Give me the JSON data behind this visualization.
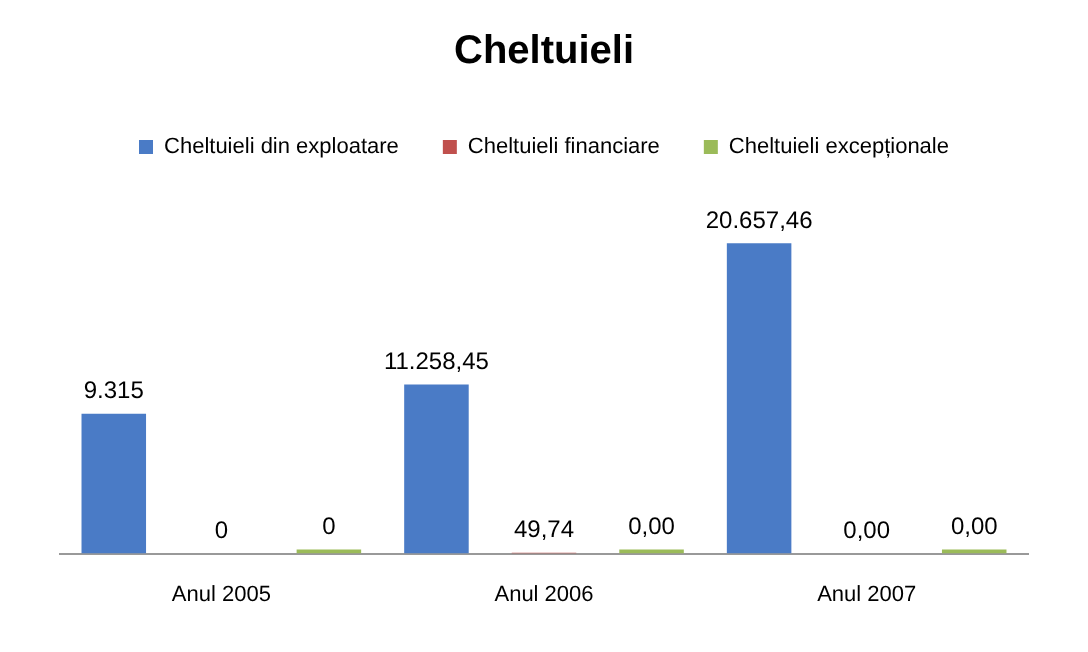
{
  "chart_data": {
    "type": "bar",
    "title": "Cheltuieli",
    "categories": [
      "Anul 2005",
      "Anul 2006",
      "Anul 2007"
    ],
    "series": [
      {
        "name": "Cheltuieli din exploatare",
        "color": "#4a7bc6",
        "values": [
          9315,
          11258.45,
          20657.46
        ],
        "value_labels": [
          "9.315",
          "11.258,45",
          "20.657,46"
        ]
      },
      {
        "name": "Cheltuieli financiare",
        "color": "#c0504d",
        "values": [
          0,
          49.74,
          0
        ],
        "value_labels": [
          "0",
          "49,74",
          "0,00"
        ]
      },
      {
        "name": "Cheltuieli excepționale",
        "color": "#9bbb59",
        "values": [
          0,
          0,
          0
        ],
        "value_labels": [
          "0",
          "0,00",
          "0,00"
        ]
      }
    ],
    "legend": "top",
    "grid": false
  }
}
